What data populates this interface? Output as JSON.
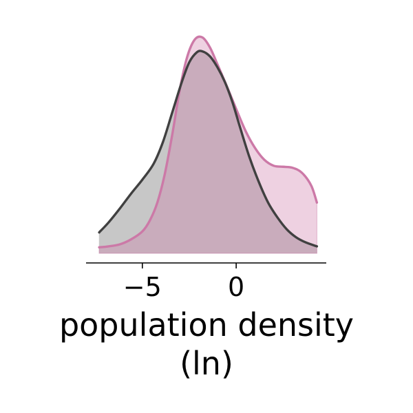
{
  "chart_data": {
    "type": "area",
    "title": "",
    "xlabel_lines": [
      "population density",
      "(ln)"
    ],
    "ylabel": "",
    "xlim": [
      -8.0,
      4.8
    ],
    "ylim": [
      0,
      0.22
    ],
    "x_ticks": [
      {
        "value": -5,
        "label": "−5"
      },
      {
        "value": 0,
        "label": "0"
      }
    ],
    "grid": false,
    "legend": "none",
    "series": [
      {
        "color": "#404040",
        "fill": "#c4c4c4",
        "points": [
          [
            -7.3,
            0.021
          ],
          [
            -6.8,
            0.031
          ],
          [
            -6.2,
            0.045
          ],
          [
            -5.6,
            0.06
          ],
          [
            -5.0,
            0.074
          ],
          [
            -4.4,
            0.09
          ],
          [
            -3.9,
            0.112
          ],
          [
            -3.4,
            0.142
          ],
          [
            -2.9,
            0.172
          ],
          [
            -2.5,
            0.192
          ],
          [
            -2.1,
            0.202
          ],
          [
            -1.8,
            0.203
          ],
          [
            -1.4,
            0.198
          ],
          [
            -1.0,
            0.187
          ],
          [
            -0.6,
            0.172
          ],
          [
            -0.2,
            0.152
          ],
          [
            0.2,
            0.127
          ],
          [
            0.7,
            0.097
          ],
          [
            1.2,
            0.072
          ],
          [
            1.7,
            0.051
          ],
          [
            2.2,
            0.036
          ],
          [
            2.7,
            0.024
          ],
          [
            3.2,
            0.016
          ],
          [
            3.7,
            0.011
          ],
          [
            4.3,
            0.007
          ]
        ]
      },
      {
        "color": "#cc79a7",
        "fill": "#cc79a7",
        "points": [
          [
            -7.3,
            0.006
          ],
          [
            -6.8,
            0.007
          ],
          [
            -6.2,
            0.009
          ],
          [
            -5.6,
            0.014
          ],
          [
            -5.0,
            0.022
          ],
          [
            -4.6,
            0.033
          ],
          [
            -4.2,
            0.051
          ],
          [
            -3.8,
            0.08
          ],
          [
            -3.4,
            0.12
          ],
          [
            -3.0,
            0.165
          ],
          [
            -2.6,
            0.198
          ],
          [
            -2.2,
            0.215
          ],
          [
            -1.8,
            0.217
          ],
          [
            -1.4,
            0.207
          ],
          [
            -1.0,
            0.19
          ],
          [
            -0.5,
            0.168
          ],
          [
            0.0,
            0.145
          ],
          [
            0.5,
            0.123
          ],
          [
            1.0,
            0.106
          ],
          [
            1.5,
            0.094
          ],
          [
            2.0,
            0.088
          ],
          [
            2.5,
            0.087
          ],
          [
            3.0,
            0.086
          ],
          [
            3.5,
            0.081
          ],
          [
            4.0,
            0.068
          ],
          [
            4.3,
            0.051
          ]
        ]
      }
    ]
  }
}
